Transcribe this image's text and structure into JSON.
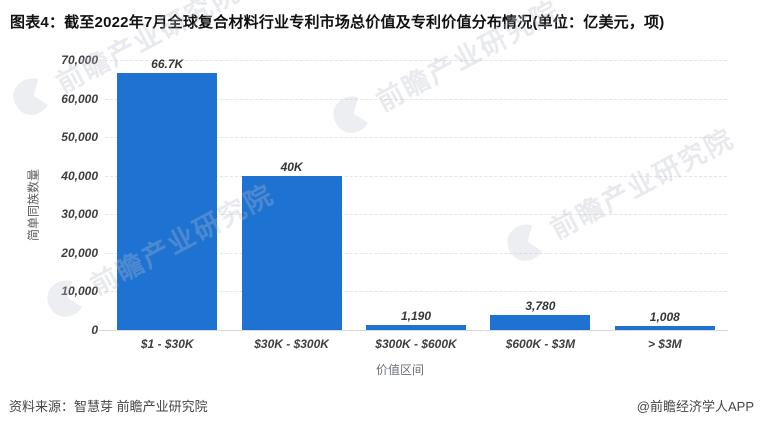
{
  "title": "图表4：截至2022年7月全球复合材料行业专利市场总价值及专利价值分布情况(单位：亿美元，项)",
  "chart_data": {
    "type": "bar",
    "categories": [
      "$1 - $30K",
      "$30K - $300K",
      "$300K - $600K",
      "$600K - $3M",
      "> $3M"
    ],
    "values": [
      66700,
      40000,
      1190,
      3780,
      1008
    ],
    "value_labels": [
      "66.7K",
      "40K",
      "1,190",
      "3,780",
      "1,008"
    ],
    "title": "截至2022年7月全球复合材料行业专利市场总价值及专利价值分布情况",
    "xlabel": "价值区间",
    "ylabel": "简单同族数量",
    "ylim": [
      0,
      70000
    ],
    "ytick_values": [
      70000,
      60000,
      50000,
      40000,
      30000,
      20000,
      10000,
      0
    ],
    "ytick_labels": [
      "70,000",
      "60,000",
      "50,000",
      "40,000",
      "30,000",
      "20,000",
      "10,000",
      "0"
    ],
    "grid": "horizontal-dashed",
    "legend": "none",
    "bar_color": "#1e73d2"
  },
  "watermark": {
    "text": "前瞻产业研究院"
  },
  "footer": {
    "source": "资料来源：智慧芽 前瞻产业研究院",
    "credit": "@前瞻经济学人APP"
  }
}
